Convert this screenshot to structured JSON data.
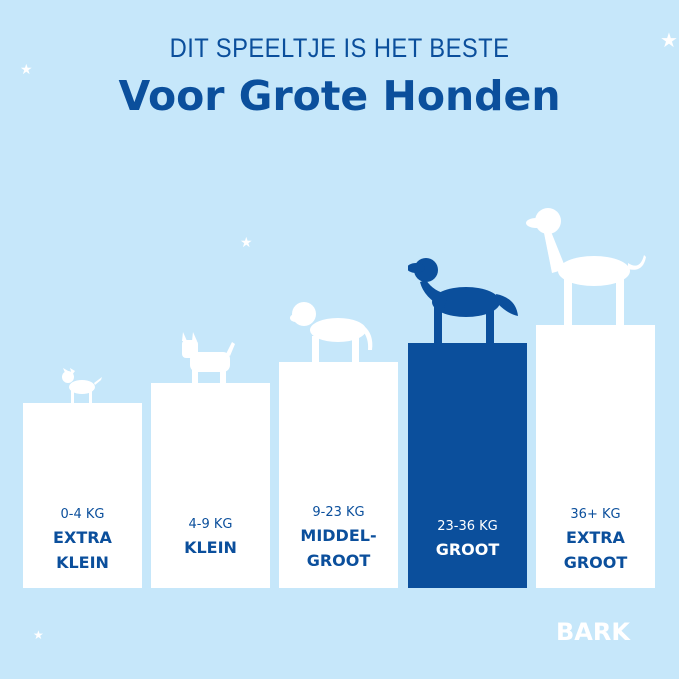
{
  "header": {
    "subtitle": "DIT SPEELTJE IS HET BESTE",
    "title": "Voor Grote Honden"
  },
  "sizes": [
    {
      "weight": "0-4 KG",
      "label1": "EXTRA",
      "label2": "KLEIN",
      "highlighted": false
    },
    {
      "weight": "4-9 KG",
      "label1": "KLEIN",
      "label2": "",
      "highlighted": false
    },
    {
      "weight": "9-23 KG",
      "label1": "MIDDEL-",
      "label2": "GROOT",
      "highlighted": false
    },
    {
      "weight": "23-36 KG",
      "label1": "GROOT",
      "label2": "",
      "highlighted": true
    },
    {
      "weight": "36+ KG",
      "label1": "EXTRA",
      "label2": "GROOT",
      "highlighted": false
    }
  ],
  "logo": "BARK",
  "colors": {
    "background": "#c6e7fa",
    "accent": "#0b4f9c",
    "box": "#ffffff"
  }
}
